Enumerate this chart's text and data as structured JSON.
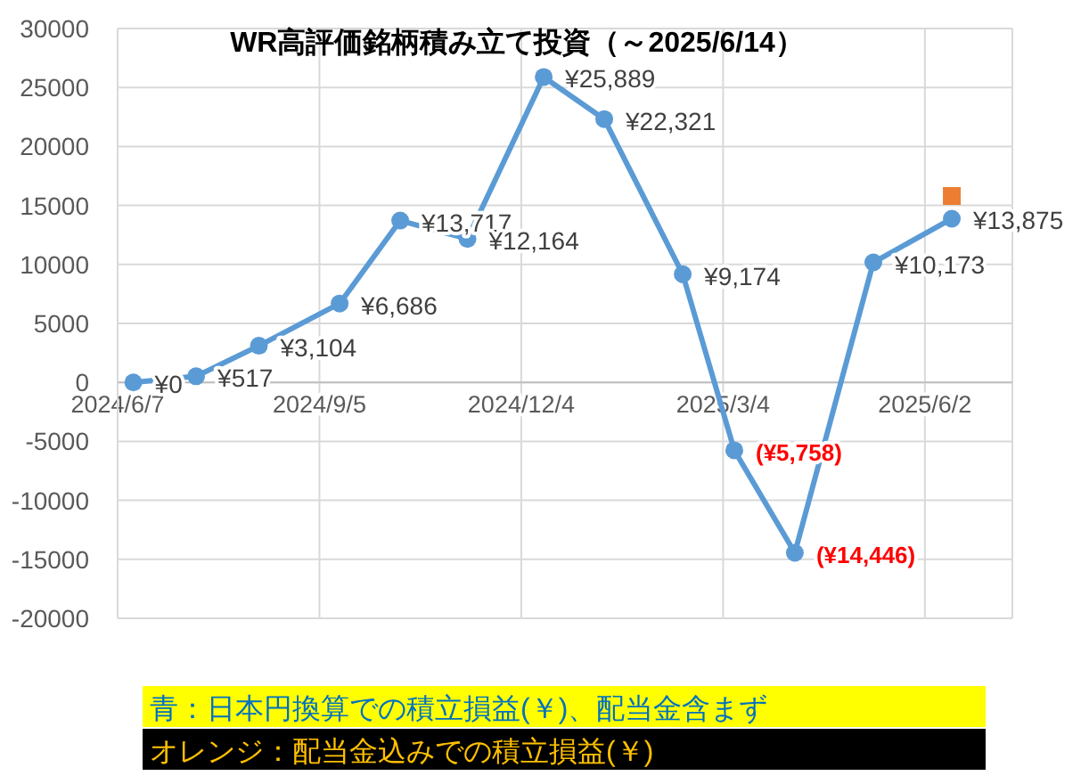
{
  "chart_data": {
    "type": "line",
    "title": "WR高評価銘柄積み立て投資（～2025/6/14）",
    "xlim": [
      "2024-06-07",
      "2025-07-11"
    ],
    "xticks": [
      {
        "value": "2024-06-07",
        "label": "2024/6/7"
      },
      {
        "value": "2024-09-05",
        "label": "2024/9/5"
      },
      {
        "value": "2024-12-04",
        "label": "2024/12/4"
      },
      {
        "value": "2025-03-04",
        "label": "2025/3/4"
      },
      {
        "value": "2025-06-02",
        "label": "2025/6/2"
      }
    ],
    "ylim": [
      -20000,
      30000
    ],
    "yticks": [
      -20000,
      -15000,
      -10000,
      -5000,
      0,
      5000,
      10000,
      15000,
      20000,
      25000,
      30000
    ],
    "grid": true,
    "marker": "circle",
    "series": [
      {
        "color": "#5b9bd5",
        "x": [
          "2024-06-14",
          "2024-07-12",
          "2024-08-09",
          "2024-09-14",
          "2024-10-11",
          "2024-11-10",
          "2024-12-14",
          "2025-01-10",
          "2025-02-14",
          "2025-03-09",
          "2025-04-05",
          "2025-05-10",
          "2025-06-14"
        ],
        "values": [
          0,
          517,
          3104,
          6686,
          13717,
          12164,
          25889,
          22321,
          9174,
          -5758,
          -14446,
          10173,
          13875
        ],
        "value_labels": [
          "¥0",
          "¥517",
          "¥3,104",
          "¥6,686",
          "¥13,717",
          "¥12,164",
          "¥25,889",
          "¥22,321",
          "¥9,174",
          "(¥5,758)",
          "(¥14,446)",
          "¥10,173",
          "¥13,875"
        ]
      },
      {
        "type": "scatter",
        "marker": "square",
        "color": "#ed7d31",
        "x": [
          "2025-06-14"
        ],
        "values": [
          15800
        ]
      }
    ],
    "annotations": [
      "青：日本円換算での積立損益(￥)、配当金含まず",
      "オレンジ：配当金込みでの積立損益(￥)"
    ]
  }
}
